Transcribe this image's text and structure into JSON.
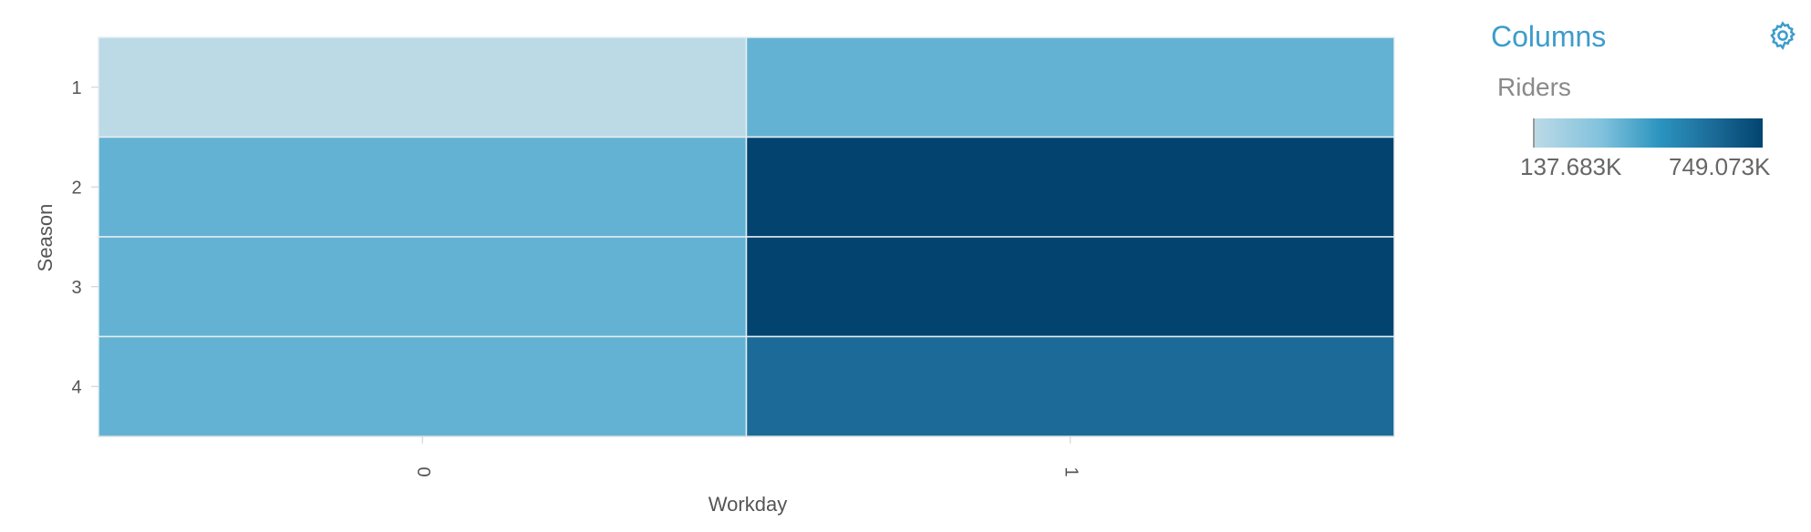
{
  "panel": {
    "title": "Columns",
    "settings_icon": "gear-icon"
  },
  "legend": {
    "title": "Riders",
    "min_label": "137.683K",
    "max_label": "749.073K",
    "colors": [
      "#bcdae6",
      "#7fc1dc",
      "#2b94bf",
      "#1c6b98",
      "#02446f"
    ]
  },
  "chart_data": {
    "type": "heatmap",
    "xlabel": "Workday",
    "ylabel": "Season",
    "x_categories": [
      "0",
      "1"
    ],
    "y_categories": [
      "1",
      "2",
      "3",
      "4"
    ],
    "values": [
      [
        137683,
        340000
      ],
      [
        340000,
        749073
      ],
      [
        340000,
        749073
      ],
      [
        340000,
        600000
      ]
    ],
    "value_range": [
      137683,
      749073
    ],
    "grid": false
  }
}
